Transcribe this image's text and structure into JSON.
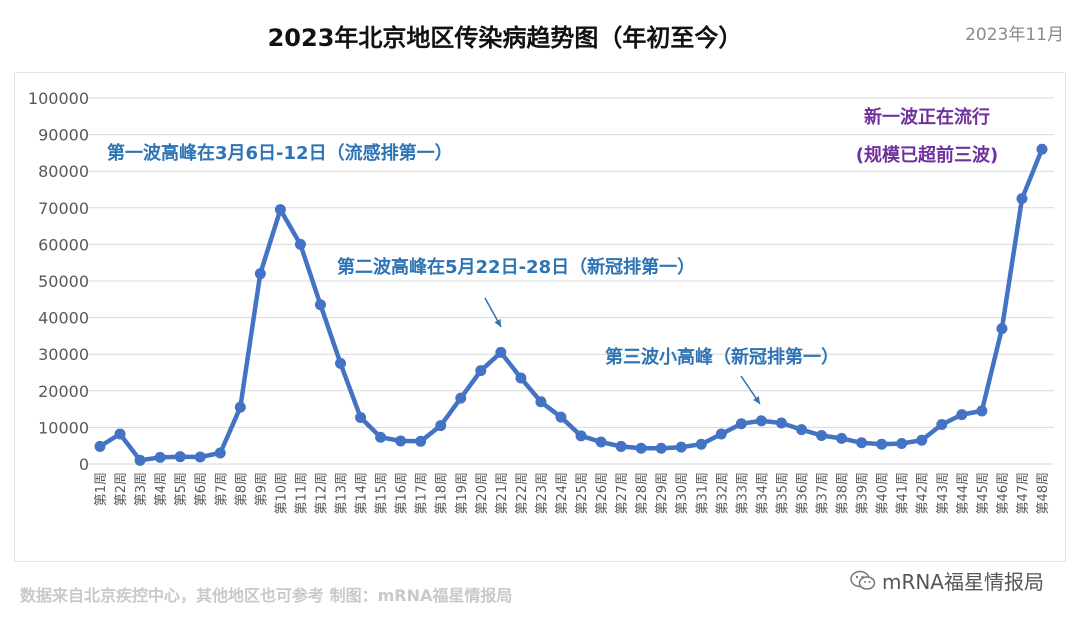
{
  "title": "2023年北京地区传染病趋势图（年初至今）",
  "date": "2023年11月",
  "source": "数据来自北京疾控中心，其他地区也可参考  制图：mRNA福星情报局",
  "watermark": "mRNA福星情报局",
  "watermark_icon": "wechat-icon",
  "colors": {
    "line": "#4472c4",
    "annotation": "#2e74b5",
    "annotation_new": "#7030a0",
    "grid": "#d9d9d9",
    "tick": "#595959"
  },
  "chart_data": {
    "type": "line",
    "title": "2023年北京地区传染病趋势图（年初至今）",
    "categories": [
      "第1周",
      "第2周",
      "第3周",
      "第4周",
      "第5周",
      "第6周",
      "第7周",
      "第8周",
      "第9周",
      "第10周",
      "第11周",
      "第12周",
      "第13周",
      "第14周",
      "第15周",
      "第16周",
      "第17周",
      "第18周",
      "第19周",
      "第20周",
      "第21周",
      "第22周",
      "第23周",
      "第24周",
      "第25周",
      "第26周",
      "第27周",
      "第28周",
      "第29周",
      "第30周",
      "第31周",
      "第32周",
      "第33周",
      "第34周",
      "第35周",
      "第36周",
      "第37周",
      "第38周",
      "第39周",
      "第40周",
      "第41周",
      "第42周",
      "第43周",
      "第44周",
      "第45周",
      "第46周",
      "第47周",
      "第48周"
    ],
    "values": [
      4800,
      8200,
      1000,
      1800,
      2000,
      1900,
      3000,
      15500,
      52000,
      69500,
      60000,
      43500,
      27500,
      12700,
      7300,
      6300,
      6200,
      10500,
      18000,
      25500,
      30500,
      23500,
      17000,
      12800,
      7700,
      6000,
      4800,
      4300,
      4300,
      4600,
      5400,
      8200,
      11000,
      11800,
      11200,
      9400,
      7800,
      7000,
      5800,
      5400,
      5600,
      6500,
      10800,
      13500,
      14500,
      37000,
      72500,
      86000
    ],
    "ylim": [
      0,
      100000
    ],
    "yticks": [
      "0",
      "10000",
      "20000",
      "30000",
      "40000",
      "50000",
      "60000",
      "70000",
      "80000",
      "90000",
      "100000"
    ],
    "grid": true,
    "annotations": [
      {
        "text": "第一波高峰在3月6日-12日（流感排第一）",
        "week": 10
      },
      {
        "text": "第二波高峰在5月22日-28日（新冠排第一）",
        "week": 21
      },
      {
        "text": "第三波小高峰（新冠排第一）",
        "week": 34
      },
      {
        "text": "新一波正在流行",
        "week": 48
      },
      {
        "text": "(规模已超前三波)",
        "week": 48
      }
    ]
  }
}
